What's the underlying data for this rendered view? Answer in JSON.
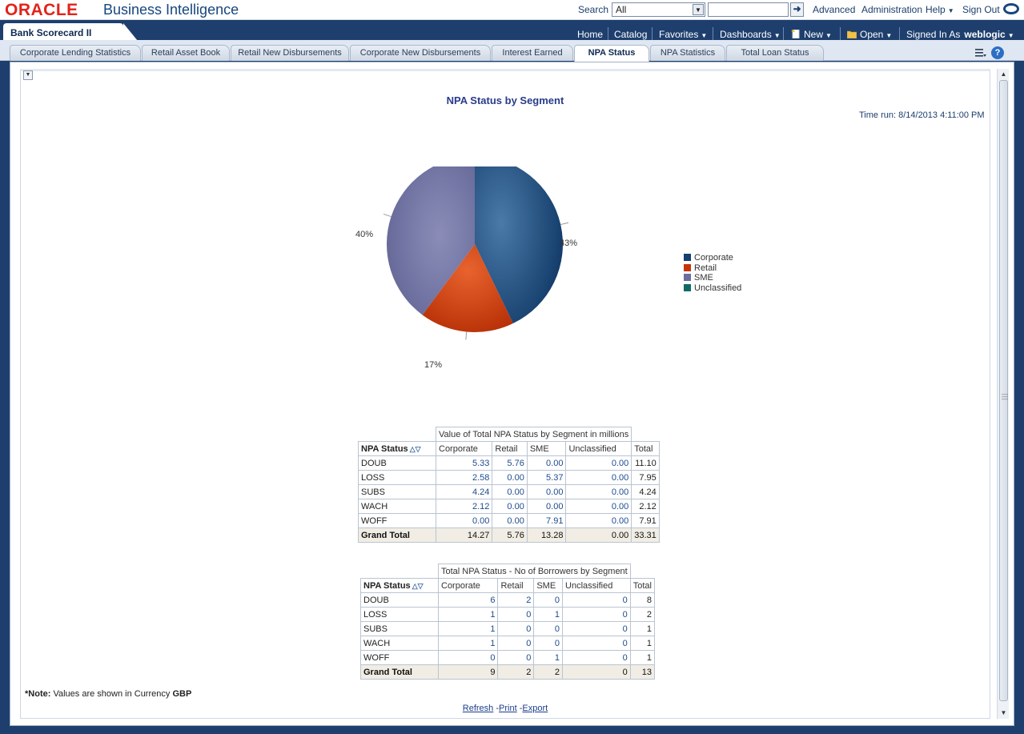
{
  "header": {
    "brand": "ORACLE",
    "product": "Business Intelligence",
    "search_label": "Search",
    "search_scope": "All",
    "search_value": "",
    "links": {
      "advanced": "Advanced",
      "administration": "Administration",
      "help": "Help",
      "sign_out": "Sign Out"
    }
  },
  "dashboard": {
    "title": "Bank Scorecard II",
    "nav": {
      "home": "Home",
      "catalog": "Catalog",
      "favorites": "Favorites",
      "dashboards": "Dashboards",
      "new": "New",
      "open": "Open",
      "signed_in_as": "Signed In As",
      "user": "weblogic"
    }
  },
  "tabs": [
    {
      "label": "Corporate Lending Statistics"
    },
    {
      "label": "Retail Asset Book"
    },
    {
      "label": "Retail New Disbursements"
    },
    {
      "label": "Corporate New Disbursements"
    },
    {
      "label": "Interest Earned"
    },
    {
      "label": "NPA Status"
    },
    {
      "label": "NPA Statistics"
    },
    {
      "label": "Total Loan Status"
    }
  ],
  "active_tab": "NPA Status",
  "report": {
    "title": "NPA Status by Segment",
    "time_run": "Time run: 8/14/2013 4:11:00 PM",
    "note_prefix": "*Note:",
    "note_text": " Values are shown in Currency ",
    "note_currency": "GBP",
    "footer": {
      "refresh": "Refresh",
      "print": "Print",
      "export": "Export",
      "sep": " -"
    }
  },
  "chart_data": {
    "type": "pie",
    "title": "NPA Status by Segment",
    "categories": [
      "Corporate",
      "Retail",
      "SME",
      "Unclassified"
    ],
    "values": [
      14.27,
      5.76,
      13.28,
      0.0
    ],
    "percent_labels": [
      "43%",
      "17%",
      "40%",
      ""
    ],
    "colors": [
      "#143f70",
      "#c5350a",
      "#6b6d9e",
      "#0f6a66"
    ],
    "legend_position": "right"
  },
  "table_value": {
    "caption": "Value of Total NPA Status by Segment in millions",
    "row_header": "NPA Status",
    "columns": [
      "Corporate",
      "Retail",
      "SME",
      "Unclassified",
      "Total"
    ],
    "rows": [
      {
        "label": "DOUB",
        "values": [
          "5.33",
          "5.76",
          "0.00",
          "0.00",
          "11.10"
        ]
      },
      {
        "label": "LOSS",
        "values": [
          "2.58",
          "0.00",
          "5.37",
          "0.00",
          "7.95"
        ]
      },
      {
        "label": "SUBS",
        "values": [
          "4.24",
          "0.00",
          "0.00",
          "0.00",
          "4.24"
        ]
      },
      {
        "label": "WACH",
        "values": [
          "2.12",
          "0.00",
          "0.00",
          "0.00",
          "2.12"
        ]
      },
      {
        "label": "WOFF",
        "values": [
          "0.00",
          "0.00",
          "7.91",
          "0.00",
          "7.91"
        ]
      }
    ],
    "grand_total": {
      "label": "Grand Total",
      "values": [
        "14.27",
        "5.76",
        "13.28",
        "0.00",
        "33.31"
      ]
    }
  },
  "table_borrowers": {
    "caption": "Total NPA Status - No of Borrowers by Segment",
    "row_header": "NPA Status",
    "columns": [
      "Corporate",
      "Retail",
      "SME",
      "Unclassified",
      "Total"
    ],
    "rows": [
      {
        "label": "DOUB",
        "values": [
          "6",
          "2",
          "0",
          "0",
          "8"
        ]
      },
      {
        "label": "LOSS",
        "values": [
          "1",
          "0",
          "1",
          "0",
          "2"
        ]
      },
      {
        "label": "SUBS",
        "values": [
          "1",
          "0",
          "0",
          "0",
          "1"
        ]
      },
      {
        "label": "WACH",
        "values": [
          "1",
          "0",
          "0",
          "0",
          "1"
        ]
      },
      {
        "label": "WOFF",
        "values": [
          "0",
          "0",
          "1",
          "0",
          "1"
        ]
      }
    ],
    "grand_total": {
      "label": "Grand Total",
      "values": [
        "9",
        "2",
        "2",
        "0",
        "13"
      ]
    }
  }
}
